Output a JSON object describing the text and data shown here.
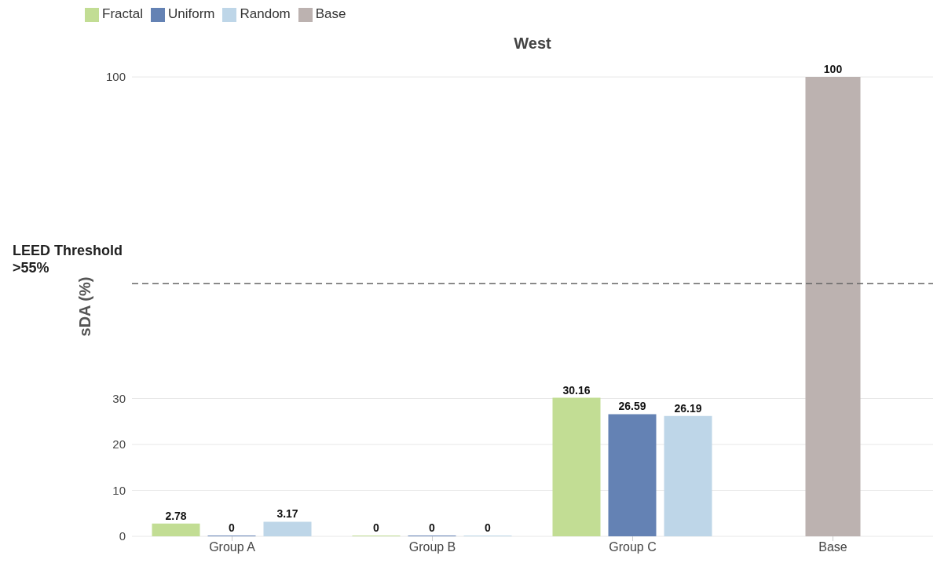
{
  "chart_data": {
    "type": "bar",
    "title": "West",
    "ylabel": "sDA (%)",
    "categories": [
      "Group A",
      "Group B",
      "Group C",
      "Base"
    ],
    "series": [
      {
        "name": "Fractal",
        "color": "#c2dd94",
        "values": [
          2.78,
          0,
          30.16,
          null
        ]
      },
      {
        "name": "Uniform",
        "color": "#6482b4",
        "values": [
          0,
          0,
          26.59,
          null
        ]
      },
      {
        "name": "Random",
        "color": "#bed6e8",
        "values": [
          3.17,
          0,
          26.19,
          null
        ]
      },
      {
        "name": "Base",
        "color": "#bcb2b0",
        "values": [
          null,
          null,
          null,
          100
        ]
      }
    ],
    "ylim": [
      0,
      100
    ],
    "yticks": [
      0,
      10,
      20,
      30,
      100
    ],
    "grid": "y",
    "legend": "top left",
    "data_labels": true,
    "ref_lines": [
      {
        "axis": "y",
        "value": 55,
        "label": "LEED Threshold >55%",
        "color": "#666666",
        "line_style": "dashed"
      }
    ]
  }
}
